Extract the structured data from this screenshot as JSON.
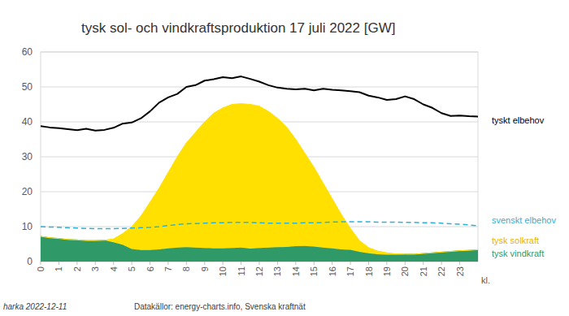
{
  "chart_data": {
    "type": "area",
    "title": "tysk sol- och vindkraftsproduktion 17 juli 2022 [GW]",
    "x_label": "kl.",
    "annotations": [
      "harka 2022-12-11",
      "Datakällor: energy-charts.info, Svenska kraftnät"
    ],
    "x": [
      0,
      0.5,
      1,
      1.5,
      2,
      2.5,
      3,
      3.5,
      4,
      4.5,
      5,
      5.5,
      6,
      6.5,
      7,
      7.5,
      8,
      8.5,
      9,
      9.5,
      10,
      10.5,
      11,
      11.5,
      12,
      12.5,
      13,
      13.5,
      14,
      14.5,
      15,
      15.5,
      16,
      16.5,
      17,
      17.5,
      18,
      18.5,
      19,
      19.5,
      20,
      20.5,
      21,
      21.5,
      22,
      22.5,
      23,
      23.5,
      24
    ],
    "xlim": [
      0,
      24
    ],
    "xticks": [
      0,
      1,
      2,
      3,
      4,
      5,
      6,
      7,
      8,
      9,
      10,
      11,
      12,
      13,
      14,
      15,
      16,
      17,
      18,
      19,
      20,
      21,
      22,
      23
    ],
    "ylim": [
      0,
      60
    ],
    "yticks": [
      0,
      10,
      20,
      30,
      40,
      50,
      60
    ],
    "grid": true,
    "stacked": true,
    "series": [
      {
        "name": "tysk vindkraft",
        "type": "area",
        "color": "#2f9a68",
        "values": [
          7.2,
          6.8,
          6.6,
          6.3,
          6.2,
          6.0,
          6.0,
          6.1,
          5.5,
          4.8,
          3.6,
          3.3,
          3.3,
          3.5,
          3.8,
          4.0,
          4.1,
          4.0,
          3.9,
          3.8,
          3.8,
          3.9,
          4.0,
          3.7,
          3.9,
          4.0,
          4.1,
          4.2,
          4.4,
          4.5,
          4.3,
          4.0,
          3.8,
          3.5,
          3.4,
          2.8,
          2.4,
          2.1,
          2.0,
          2.0,
          2.1,
          2.1,
          2.3,
          2.5,
          2.7,
          2.9,
          3.1,
          3.2,
          3.4
        ]
      },
      {
        "name": "tysk solkraft",
        "type": "area",
        "color": "#ffe000",
        "values": [
          0,
          0,
          0,
          0,
          0,
          0,
          0,
          0,
          1.0,
          3.2,
          6.4,
          9.7,
          13.7,
          17.5,
          21.7,
          26.0,
          29.9,
          33.0,
          36.1,
          38.7,
          40.2,
          41.1,
          41.2,
          41.3,
          40.6,
          39.0,
          36.9,
          34.3,
          30.6,
          26.5,
          22.7,
          18.5,
          14.2,
          10.0,
          6.1,
          3.2,
          1.6,
          0.9,
          0.5,
          0.2,
          0,
          0,
          0,
          0,
          0,
          0,
          0,
          0,
          0
        ]
      },
      {
        "name": "tyskt elbehov",
        "type": "line",
        "color": "#000000",
        "line_style": "solid",
        "values": [
          38.8,
          38.4,
          38.2,
          37.9,
          37.6,
          38.0,
          37.5,
          37.7,
          38.3,
          39.5,
          39.8,
          41.0,
          43.0,
          45.5,
          47.0,
          48.0,
          50.0,
          50.5,
          51.8,
          52.2,
          52.8,
          52.5,
          53.0,
          52.3,
          51.5,
          50.5,
          49.8,
          49.5,
          49.3,
          49.5,
          49.0,
          49.5,
          49.2,
          49.0,
          48.8,
          48.5,
          47.5,
          47.0,
          46.3,
          46.5,
          47.3,
          46.5,
          45.0,
          44.0,
          42.5,
          41.7,
          41.8,
          41.6,
          41.5
        ]
      },
      {
        "name": "svenskt elbehov",
        "type": "line",
        "color": "#2ab3d6",
        "line_style": "dashed",
        "values": [
          10.0,
          9.9,
          9.8,
          9.7,
          9.6,
          9.5,
          9.4,
          9.4,
          9.4,
          9.5,
          9.6,
          9.7,
          9.8,
          10.0,
          10.3,
          10.6,
          10.8,
          10.9,
          11.0,
          11.1,
          11.1,
          11.2,
          11.2,
          11.2,
          11.1,
          11.0,
          11.0,
          11.0,
          11.0,
          11.1,
          11.1,
          11.2,
          11.3,
          11.4,
          11.4,
          11.4,
          11.4,
          11.3,
          11.3,
          11.3,
          11.2,
          11.2,
          11.1,
          11.1,
          11.0,
          10.8,
          10.7,
          10.5,
          10.2
        ]
      }
    ]
  }
}
